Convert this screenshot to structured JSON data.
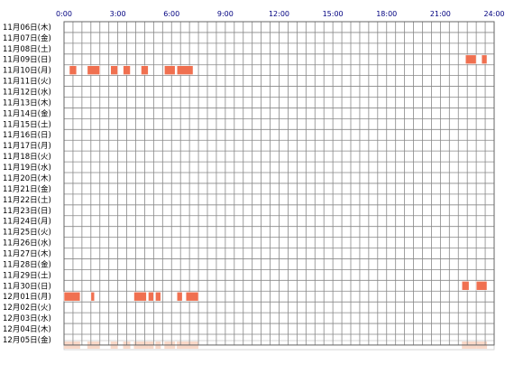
{
  "chart_data": {
    "type": "heatmap",
    "x_unit": "hours",
    "xlim": [
      0,
      24
    ],
    "x_ticks": [
      {
        "value": 0,
        "label": "0:00"
      },
      {
        "value": 3,
        "label": "3:00"
      },
      {
        "value": 6,
        "label": "6:00"
      },
      {
        "value": 9,
        "label": "9:00"
      },
      {
        "value": 12,
        "label": "12:00"
      },
      {
        "value": 15,
        "label": "15:00"
      },
      {
        "value": 18,
        "label": "18:00"
      },
      {
        "value": 21,
        "label": "21:00"
      },
      {
        "value": 24,
        "label": "24:00"
      }
    ],
    "grid": true,
    "days": [
      "11月06日(木)",
      "11月07日(金)",
      "11月08日(土)",
      "11月09日(日)",
      "11月10日(月)",
      "11月11日(火)",
      "11月12日(水)",
      "11月13日(木)",
      "11月14日(金)",
      "11月15日(土)",
      "11月16日(日)",
      "11月17日(月)",
      "11月18日(火)",
      "11月19日(水)",
      "11月20日(木)",
      "11月21日(金)",
      "11月22日(土)",
      "11月23日(日)",
      "11月24日(月)",
      "11月25日(火)",
      "11月26日(水)",
      "11月27日(木)",
      "11月28日(金)",
      "11月29日(土)",
      "11月30日(日)",
      "12月01日(月)",
      "12月02日(火)",
      "12月03日(水)",
      "12月04日(木)",
      "12月05日(金)"
    ],
    "active_periods": [
      {
        "day": "11月09日(日)",
        "start": 22.4,
        "end": 23.0
      },
      {
        "day": "11月09日(日)",
        "start": 23.3,
        "end": 23.6
      },
      {
        "day": "11月10日(月)",
        "start": 0.3,
        "end": 0.7
      },
      {
        "day": "11月10日(月)",
        "start": 1.3,
        "end": 2.0
      },
      {
        "day": "11月10日(月)",
        "start": 2.6,
        "end": 3.0
      },
      {
        "day": "11月10日(月)",
        "start": 3.3,
        "end": 3.7
      },
      {
        "day": "11月10日(月)",
        "start": 4.3,
        "end": 4.7
      },
      {
        "day": "11月10日(月)",
        "start": 5.6,
        "end": 6.2
      },
      {
        "day": "11月10日(月)",
        "start": 6.3,
        "end": 7.2
      },
      {
        "day": "11月30日(日)",
        "start": 22.2,
        "end": 22.6
      },
      {
        "day": "11月30日(日)",
        "start": 23.0,
        "end": 23.6
      },
      {
        "day": "12月01日(月)",
        "start": 0.0,
        "end": 0.9
      },
      {
        "day": "12月01日(月)",
        "start": 1.5,
        "end": 1.7
      },
      {
        "day": "12月01日(月)",
        "start": 3.9,
        "end": 4.6
      },
      {
        "day": "12月01日(月)",
        "start": 4.7,
        "end": 5.0
      },
      {
        "day": "12月01日(月)",
        "start": 5.1,
        "end": 5.4
      },
      {
        "day": "12月01日(月)",
        "start": 6.3,
        "end": 6.6
      },
      {
        "day": "12月01日(月)",
        "start": 6.8,
        "end": 7.5
      }
    ],
    "summary_bar": "aggregate of all days, shown as a faint band under the grid",
    "colors": {
      "active": "#f07050",
      "active_stroke": "#ffffff",
      "grid_line": "#888888",
      "plot_border": "#666666",
      "summary_fill": "#f9d8c8",
      "summary_border": "#cccccc",
      "tick_label": "#000080",
      "day_label": "#000000"
    }
  }
}
